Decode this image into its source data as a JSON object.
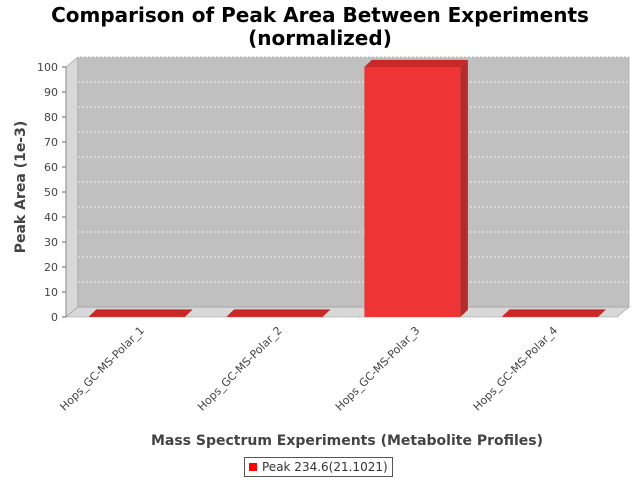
{
  "chart_data": {
    "type": "bar",
    "title_line1": "Comparison of Peak Area Between Experiments",
    "title_line2": "(normalized)",
    "xlabel": "Mass Spectrum Experiments (Metabolite Profiles)",
    "ylabel": "Peak Area (1e-3)",
    "categories": [
      "Hops_GC-MS-Polar_1",
      "Hops_GC-MS-Polar_2",
      "Hops_GC-MS-Polar_3",
      "Hops_GC-MS-Polar_4"
    ],
    "series": [
      {
        "name": "Peak 234.6(21.1021)",
        "values": [
          0,
          0,
          100,
          0
        ],
        "color": "#ff0000"
      }
    ],
    "ylim": [
      0,
      100
    ],
    "yticks": [
      "0",
      "10",
      "20",
      "30",
      "40",
      "50",
      "60",
      "70",
      "80",
      "90",
      "100"
    ],
    "grid": true,
    "legend_position": "bottom",
    "plot_background": "#c0c0c0"
  }
}
